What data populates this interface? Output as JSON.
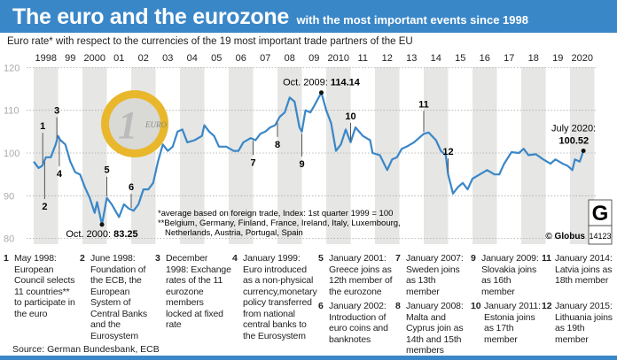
{
  "header": {
    "title": "The euro and the eurozone",
    "subtitle": "with the most important events since 1998"
  },
  "chart_description": "Euro rate* with respect to the currencies of the 19 most important trade partners of the EU",
  "chart_data": {
    "type": "line",
    "ylim": [
      80,
      120
    ],
    "yticks": [
      80,
      90,
      100,
      110,
      120
    ],
    "xlim": [
      1998,
      2020.6
    ],
    "xtick_labels": [
      "1998",
      "99",
      "2000",
      "01",
      "02",
      "03",
      "04",
      "05",
      "06",
      "07",
      "08",
      "09",
      "2010",
      "11",
      "12",
      "13",
      "14",
      "15",
      "16",
      "17",
      "18",
      "19",
      "2020"
    ],
    "grid": true,
    "line_color": "#3a87c8",
    "series": [
      {
        "x": [
          1998.0,
          1998.2,
          1998.35,
          1998.5,
          1998.7,
          1998.9,
          1999.0,
          1999.1,
          1999.3,
          1999.5,
          1999.7,
          1999.9,
          2000.1,
          2000.3,
          2000.5,
          2000.6,
          2000.8,
          2001.0,
          2001.2,
          2001.5,
          2001.7,
          2001.9,
          2002.1,
          2002.3,
          2002.5,
          2002.7,
          2002.9,
          2003.1,
          2003.3,
          2003.5,
          2003.7,
          2003.9,
          2004.1,
          2004.3,
          2004.6,
          2004.9,
          2005.0,
          2005.2,
          2005.4,
          2005.6,
          2005.9,
          2006.2,
          2006.4,
          2006.6,
          2006.9,
          2007.1,
          2007.3,
          2007.5,
          2007.7,
          2007.9,
          2008.1,
          2008.3,
          2008.5,
          2008.7,
          2008.9,
          2009.0,
          2009.15,
          2009.35,
          2009.5,
          2009.8,
          2010.0,
          2010.2,
          2010.4,
          2010.6,
          2010.8,
          2011.0,
          2011.2,
          2011.5,
          2011.8,
          2011.9,
          2012.2,
          2012.5,
          2012.7,
          2012.9,
          2013.1,
          2013.3,
          2013.6,
          2013.9,
          2014.0,
          2014.2,
          2014.5,
          2014.7,
          2014.9,
          2015.0,
          2015.2,
          2015.4,
          2015.6,
          2015.8,
          2016.0,
          2016.3,
          2016.6,
          2016.9,
          2017.1,
          2017.3,
          2017.6,
          2017.9,
          2018.1,
          2018.3,
          2018.6,
          2018.9,
          2019.2,
          2019.4,
          2019.7,
          2019.9,
          2020.1,
          2020.2,
          2020.4,
          2020.55
        ],
        "y": [
          98,
          96.5,
          97,
          99,
          99,
          102,
          104,
          103,
          102,
          98,
          95.5,
          95,
          92,
          89.5,
          86,
          88.5,
          83.25,
          89.5,
          88,
          85,
          88,
          87,
          86.5,
          88,
          91.5,
          91.5,
          93,
          98,
          102,
          100.5,
          101.5,
          105,
          105.5,
          102.5,
          103,
          104,
          106.5,
          105,
          104,
          101.5,
          101.5,
          100.5,
          100.5,
          102.5,
          103.5,
          103,
          104.5,
          105,
          106,
          106.5,
          108.5,
          109.5,
          113,
          112,
          106,
          105,
          110,
          109.5,
          111,
          114.14,
          110,
          107,
          100.5,
          102,
          105.5,
          102.5,
          106,
          104,
          103,
          100,
          99.5,
          96,
          98.5,
          99,
          101,
          101.5,
          102.5,
          104,
          104.5,
          104.8,
          103,
          100.5,
          99.5,
          95,
          90.5,
          92,
          93,
          91.5,
          94,
          95,
          96,
          95,
          95,
          97.5,
          100.2,
          100,
          101,
          99.5,
          99.7,
          98.5,
          97.5,
          98.5,
          97.5,
          97,
          96,
          98.5,
          98,
          100.52
        ]
      }
    ],
    "annotations": [
      {
        "label": "Oct. 2000:",
        "value": "83.25",
        "x": 2000.8,
        "y": 83.25
      },
      {
        "label": "Oct. 2009:",
        "value": "114.14",
        "x": 2009.8,
        "y": 114.14
      },
      {
        "label": "July 2020:",
        "value": "100.52",
        "x": 2020.55,
        "y": 100.52
      }
    ],
    "event_markers": [
      {
        "n": "1",
        "x": 1998.37,
        "side": "above"
      },
      {
        "n": "2",
        "x": 1998.45,
        "side": "below"
      },
      {
        "n": "3",
        "x": 1998.95,
        "side": "above"
      },
      {
        "n": "4",
        "x": 1999.05,
        "side": "below"
      },
      {
        "n": "5",
        "x": 2001.0,
        "side": "above"
      },
      {
        "n": "6",
        "x": 2002.0,
        "side": "above"
      },
      {
        "n": "7",
        "x": 2007.0,
        "side": "below"
      },
      {
        "n": "8",
        "x": 2008.0,
        "side": "below"
      },
      {
        "n": "9",
        "x": 2009.0,
        "side": "below"
      },
      {
        "n": "10",
        "x": 2011.0,
        "side": "above"
      },
      {
        "n": "11",
        "x": 2014.0,
        "side": "above"
      },
      {
        "n": "12",
        "x": 2015.0,
        "side": "above"
      }
    ],
    "footnote1": "*average based on foreign trade, Index: 1st quarter  1999 = 100",
    "footnote2": "**Belgium, Germany, Finland, France, Ireland, Italy, Luxembourg,",
    "footnote3": "Netherlands, Austria, Portugal, Spain"
  },
  "coin": {
    "numeral": "1",
    "text": "EURO"
  },
  "credit": {
    "copyright": "© Globus",
    "number": "14123",
    "logo": "G"
  },
  "events": [
    {
      "n": "1",
      "text": "May 1998: European Council selects 11 countries** to participate in the euro"
    },
    {
      "n": "2",
      "text": "June 1998: Foundation of the ECB, the European System of Central Banks and the Eurosystem"
    },
    {
      "n": "3",
      "text": "December 1998: Exchange rates of the 11 eurozone members locked at fixed rate"
    },
    {
      "n": "4",
      "text": "January 1999: Euro introduced as a non-physical currency,monetary policy transferred from national central banks to the Eurosystem"
    },
    {
      "n": "5",
      "text": "January 2001: Greece joins as 12th member of the eurozone"
    },
    {
      "n": "6",
      "text": "January 2002: Introduction of euro coins and banknotes"
    },
    {
      "n": "7",
      "text": "January 2007: Sweden joins as 13th member"
    },
    {
      "n": "8",
      "text": "January 2008: Malta and Cyprus join as 14th and 15th members"
    },
    {
      "n": "9",
      "text": "January 2009: Slovakia joins as 16th member"
    },
    {
      "n": "10",
      "text": "January 2011: Estonia joins as 17th member"
    },
    {
      "n": "11",
      "text": "January 2014: Latvia joins as 18th member"
    },
    {
      "n": "12",
      "text": "January 2015: Lithuania joins as 19th member"
    }
  ],
  "source": "Source: German Bundesbank, ECB"
}
